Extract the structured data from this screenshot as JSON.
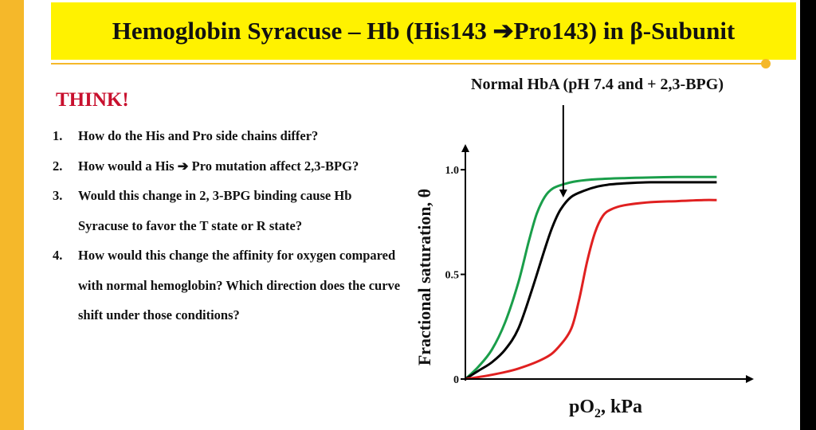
{
  "slide": {
    "title": "Hemoglobin Syracuse – Hb (His143 ➔Pro143) in β-Subunit",
    "think_label": "THINK!",
    "questions": [
      {
        "num": "1.",
        "text": "How do the His and Pro side chains differ?"
      },
      {
        "num": "2.",
        "text": "How would a His ➔ Pro mutation affect 2,3-BPG?"
      },
      {
        "num": "3.",
        "text": "Would this change in 2, 3-BPG binding cause Hb Syracuse to favor the T state or R state?"
      },
      {
        "num": "4.",
        "text": "How would this change the affinity for oxygen compared with normal hemoglobin? Which direction does the curve shift under those conditions?"
      }
    ],
    "annotation": "Normal HbA (pH 7.4 and + 2,3-BPG)",
    "colors": {
      "title_background": "#fff200",
      "accent": "#f5b82a",
      "think": "#c8102e"
    }
  },
  "chart_data": {
    "type": "line",
    "xlabel": "pO₂, kPa",
    "ylabel": "Fractional saturation, θ",
    "yticks": [
      {
        "value": 0,
        "label": "0"
      },
      {
        "value": 0.5,
        "label": "0.5"
      },
      {
        "value": 1.0,
        "label": "1.0"
      }
    ],
    "ylim": [
      0,
      1.05
    ],
    "xlim": [
      0,
      1
    ],
    "x_tick_labels": "none",
    "grid": false,
    "legend": "none",
    "series": [
      {
        "color": "#1a9e4a",
        "x": [
          0,
          0.05,
          0.1,
          0.15,
          0.2,
          0.24,
          0.27,
          0.3,
          0.33,
          0.37,
          0.42,
          0.5,
          0.6,
          0.7,
          0.8,
          0.9,
          0.95
        ],
        "y": [
          0,
          0.06,
          0.14,
          0.27,
          0.46,
          0.66,
          0.79,
          0.87,
          0.91,
          0.93,
          0.945,
          0.955,
          0.96,
          0.963,
          0.965,
          0.965,
          0.965
        ]
      },
      {
        "color": "#000000",
        "x": [
          0,
          0.05,
          0.1,
          0.15,
          0.2,
          0.25,
          0.3,
          0.33,
          0.36,
          0.4,
          0.45,
          0.5,
          0.55,
          0.6,
          0.7,
          0.8,
          0.9,
          0.95
        ],
        "y": [
          0,
          0.04,
          0.08,
          0.14,
          0.24,
          0.42,
          0.62,
          0.73,
          0.81,
          0.87,
          0.9,
          0.92,
          0.93,
          0.935,
          0.94,
          0.94,
          0.94,
          0.94
        ]
      },
      {
        "color": "#e02020",
        "x": [
          0,
          0.1,
          0.2,
          0.3,
          0.35,
          0.4,
          0.43,
          0.46,
          0.49,
          0.52,
          0.55,
          0.6,
          0.7,
          0.8,
          0.9,
          0.95
        ],
        "y": [
          0,
          0.02,
          0.05,
          0.1,
          0.15,
          0.24,
          0.38,
          0.56,
          0.7,
          0.78,
          0.81,
          0.83,
          0.845,
          0.85,
          0.855,
          0.855
        ]
      }
    ],
    "annotation_arrow": {
      "label": "Normal HbA (pH 7.4 and + 2,3-BPG)",
      "target_x": 0.37
    }
  }
}
